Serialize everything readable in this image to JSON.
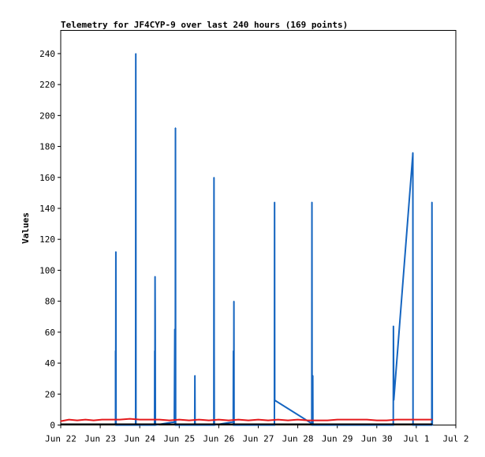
{
  "chart_data": {
    "type": "line",
    "title": "Telemetry for JF4CYP-9 over last 240 hours (169 points)",
    "xlabel": "",
    "ylabel": "Values",
    "xlim": [
      0,
      240
    ],
    "ylim": [
      0,
      255
    ],
    "grid": false,
    "x_ticks": [
      {
        "x": 0,
        "label": "Jun 22"
      },
      {
        "x": 24,
        "label": "Jun 23"
      },
      {
        "x": 48,
        "label": "Jun 24"
      },
      {
        "x": 72,
        "label": "Jun 25"
      },
      {
        "x": 96,
        "label": "Jun 26"
      },
      {
        "x": 120,
        "label": "Jun 27"
      },
      {
        "x": 144,
        "label": "Jun 28"
      },
      {
        "x": 168,
        "label": "Jun 29"
      },
      {
        "x": 192,
        "label": "Jun 30"
      },
      {
        "x": 216,
        "label": "Jul 1"
      },
      {
        "x": 240,
        "label": "Jul 2"
      }
    ],
    "y_ticks": [
      0,
      20,
      40,
      60,
      80,
      100,
      120,
      140,
      160,
      180,
      200,
      220,
      240
    ],
    "series": [
      {
        "color": "#1565c0",
        "points": [
          [
            33.3,
            0
          ],
          [
            33.3,
            48
          ],
          [
            33.4,
            0
          ],
          [
            33.5,
            112
          ],
          [
            33.6,
            0
          ],
          [
            45.5,
            0
          ],
          [
            45.6,
            240
          ],
          [
            45.7,
            0
          ],
          [
            57.0,
            0
          ],
          [
            57.1,
            48
          ],
          [
            57.2,
            0
          ],
          [
            57.3,
            96
          ],
          [
            57.4,
            64
          ],
          [
            57.5,
            0
          ],
          [
            69.0,
            2
          ],
          [
            69.3,
            62
          ],
          [
            69.5,
            2
          ],
          [
            69.6,
            0
          ],
          [
            69.7,
            192
          ],
          [
            69.8,
            0
          ],
          [
            81.4,
            0
          ],
          [
            81.5,
            32
          ],
          [
            81.6,
            0
          ],
          [
            93.0,
            0
          ],
          [
            93.1,
            160
          ],
          [
            93.2,
            48
          ],
          [
            93.3,
            0
          ],
          [
            104.8,
            2
          ],
          [
            104.9,
            48
          ],
          [
            105.0,
            0
          ],
          [
            105.1,
            0
          ],
          [
            105.2,
            80
          ],
          [
            105.3,
            0
          ],
          [
            129.8,
            0
          ],
          [
            129.9,
            144
          ],
          [
            130.0,
            16
          ],
          [
            152.5,
            1
          ],
          [
            152.6,
            144
          ],
          [
            152.7,
            0
          ],
          [
            153.0,
            0
          ],
          [
            153.1,
            32
          ],
          [
            153.2,
            0
          ],
          [
            202.0,
            0
          ],
          [
            202.1,
            64
          ],
          [
            202.3,
            16
          ],
          [
            213.8,
            174
          ],
          [
            213.9,
            176
          ],
          [
            214.0,
            0
          ],
          [
            225.4,
            0
          ],
          [
            225.5,
            144
          ],
          [
            225.6,
            72
          ],
          [
            225.7,
            0
          ]
        ]
      },
      {
        "color": "#e41a1c",
        "points": [
          [
            0,
            2.5
          ],
          [
            5,
            3.5
          ],
          [
            10,
            3.0
          ],
          [
            15,
            3.5
          ],
          [
            20,
            3.0
          ],
          [
            25,
            3.5
          ],
          [
            30,
            3.5
          ],
          [
            36,
            3.5
          ],
          [
            42,
            4.0
          ],
          [
            48,
            3.5
          ],
          [
            54,
            3.5
          ],
          [
            60,
            3.5
          ],
          [
            66,
            3.0
          ],
          [
            72,
            3.5
          ],
          [
            78,
            3.0
          ],
          [
            84,
            3.5
          ],
          [
            90,
            3.0
          ],
          [
            96,
            3.5
          ],
          [
            102,
            3.0
          ],
          [
            108,
            3.5
          ],
          [
            114,
            3.0
          ],
          [
            120,
            3.5
          ],
          [
            126,
            3.0
          ],
          [
            132,
            3.5
          ],
          [
            138,
            3.0
          ],
          [
            144,
            3.5
          ],
          [
            150,
            3.0
          ],
          [
            156,
            3.0
          ],
          [
            162,
            3.0
          ],
          [
            168,
            3.5
          ],
          [
            174,
            3.5
          ],
          [
            180,
            3.5
          ],
          [
            186,
            3.5
          ],
          [
            192,
            3.0
          ],
          [
            198,
            3.0
          ],
          [
            204,
            3.5
          ],
          [
            210,
            3.5
          ],
          [
            216,
            3.5
          ],
          [
            222,
            3.5
          ],
          [
            225.6,
            3.5
          ]
        ]
      },
      {
        "color": "#000000",
        "points": [
          [
            0,
            0.5
          ],
          [
            225.6,
            0.5
          ]
        ]
      }
    ]
  }
}
